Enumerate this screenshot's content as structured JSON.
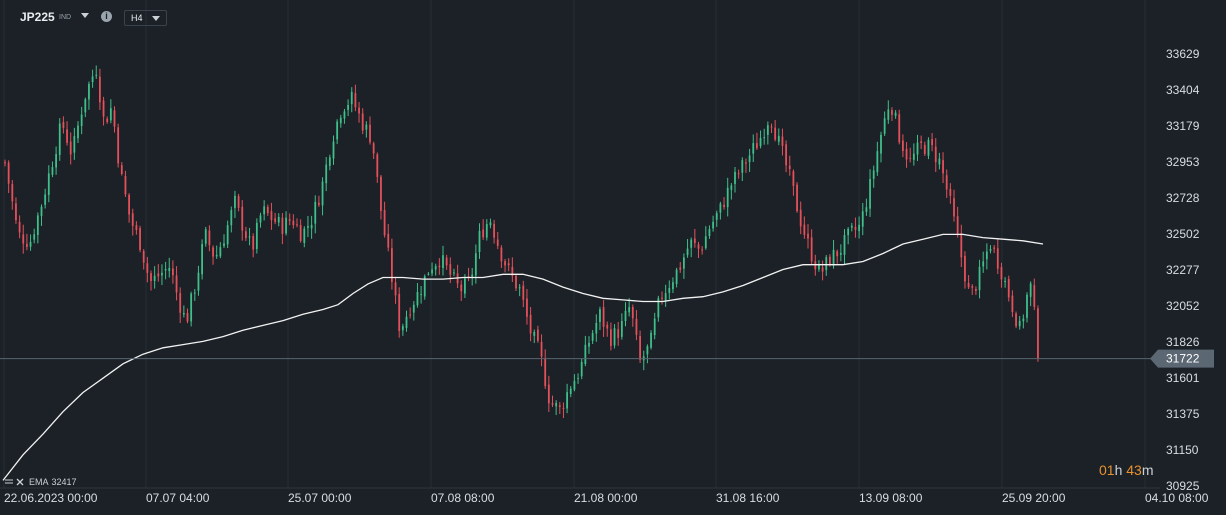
{
  "header": {
    "symbol": "JP225",
    "symbol_type": "IND",
    "timeframe": "H4"
  },
  "indicator": {
    "label": "EMA",
    "value": "32417"
  },
  "timer": {
    "hours": "01",
    "hours_unit": "h",
    "minutes": "43",
    "minutes_unit": "m"
  },
  "colors": {
    "background": "#1b2127",
    "bull": "#3fbf8a",
    "bear": "#e5505a",
    "ema": "#f2f2f2",
    "price_line": "#596570"
  },
  "chart_data": {
    "type": "candlestick",
    "y_ticks": [
      33629,
      33404,
      33179,
      32953,
      32728,
      32502,
      32277,
      32052,
      31826,
      31601,
      31375,
      31150,
      30925
    ],
    "x_ticks": [
      "22.06.2023  00:00",
      "07.07  04:00",
      "25.07  00:00",
      "07.08  08:00",
      "21.08  00:00",
      "31.08  16:00",
      "13.09  08:00",
      "25.09  20:00",
      "04.10  08:00"
    ],
    "current_price": "31722",
    "ylim": [
      30925,
      33629
    ],
    "close_path": [
      [
        0,
        32450
      ],
      [
        5,
        32950
      ],
      [
        18,
        32500
      ],
      [
        30,
        32450
      ],
      [
        42,
        32700
      ],
      [
        52,
        32950
      ],
      [
        62,
        33200
      ],
      [
        72,
        33000
      ],
      [
        84,
        33350
      ],
      [
        96,
        33550
      ],
      [
        104,
        33200
      ],
      [
        112,
        33300
      ],
      [
        120,
        32900
      ],
      [
        130,
        32600
      ],
      [
        140,
        32450
      ],
      [
        150,
        32200
      ],
      [
        160,
        32250
      ],
      [
        170,
        32300
      ],
      [
        178,
        32100
      ],
      [
        186,
        31950
      ],
      [
        196,
        32200
      ],
      [
        205,
        32500
      ],
      [
        215,
        32350
      ],
      [
        225,
        32500
      ],
      [
        235,
        32700
      ],
      [
        243,
        32550
      ],
      [
        252,
        32400
      ],
      [
        262,
        32650
      ],
      [
        272,
        32600
      ],
      [
        282,
        32550
      ],
      [
        292,
        32600
      ],
      [
        302,
        32500
      ],
      [
        312,
        32600
      ],
      [
        322,
        32800
      ],
      [
        332,
        33100
      ],
      [
        342,
        33300
      ],
      [
        352,
        33350
      ],
      [
        362,
        33200
      ],
      [
        372,
        33100
      ],
      [
        382,
        32600
      ],
      [
        390,
        32300
      ],
      [
        400,
        31900
      ],
      [
        410,
        32050
      ],
      [
        420,
        32150
      ],
      [
        430,
        32300
      ],
      [
        440,
        32350
      ],
      [
        450,
        32250
      ],
      [
        460,
        32150
      ],
      [
        470,
        32200
      ],
      [
        480,
        32500
      ],
      [
        490,
        32600
      ],
      [
        500,
        32400
      ],
      [
        510,
        32250
      ],
      [
        520,
        32150
      ],
      [
        530,
        31900
      ],
      [
        540,
        31750
      ],
      [
        550,
        31450
      ],
      [
        560,
        31400
      ],
      [
        570,
        31550
      ],
      [
        580,
        31650
      ],
      [
        590,
        31850
      ],
      [
        600,
        32000
      ],
      [
        610,
        31850
      ],
      [
        620,
        31900
      ],
      [
        630,
        32050
      ],
      [
        640,
        31700
      ],
      [
        650,
        31800
      ],
      [
        660,
        32100
      ],
      [
        670,
        32200
      ],
      [
        680,
        32300
      ],
      [
        690,
        32450
      ],
      [
        700,
        32400
      ],
      [
        710,
        32550
      ],
      [
        720,
        32650
      ],
      [
        730,
        32800
      ],
      [
        740,
        32900
      ],
      [
        750,
        33000
      ],
      [
        760,
        33100
      ],
      [
        770,
        33250
      ],
      [
        780,
        33050
      ],
      [
        790,
        32850
      ],
      [
        800,
        32600
      ],
      [
        810,
        32400
      ],
      [
        820,
        32250
      ],
      [
        830,
        32350
      ],
      [
        840,
        32400
      ],
      [
        850,
        32500
      ],
      [
        860,
        32550
      ],
      [
        870,
        32800
      ],
      [
        880,
        33100
      ],
      [
        890,
        33350
      ],
      [
        900,
        33100
      ],
      [
        910,
        32950
      ],
      [
        920,
        33050
      ],
      [
        930,
        33050
      ],
      [
        940,
        32950
      ],
      [
        950,
        32700
      ],
      [
        960,
        32400
      ],
      [
        970,
        32100
      ],
      [
        980,
        32250
      ],
      [
        990,
        32450
      ],
      [
        1000,
        32300
      ],
      [
        1010,
        32100
      ],
      [
        1020,
        31900
      ],
      [
        1030,
        32200
      ],
      [
        1040,
        31722
      ]
    ],
    "ema_path": [
      [
        0,
        30960
      ],
      [
        20,
        31120
      ],
      [
        40,
        31250
      ],
      [
        60,
        31390
      ],
      [
        80,
        31510
      ],
      [
        100,
        31600
      ],
      [
        120,
        31690
      ],
      [
        140,
        31750
      ],
      [
        160,
        31790
      ],
      [
        180,
        31810
      ],
      [
        200,
        31830
      ],
      [
        220,
        31860
      ],
      [
        240,
        31900
      ],
      [
        260,
        31930
      ],
      [
        280,
        31960
      ],
      [
        300,
        32000
      ],
      [
        320,
        32030
      ],
      [
        335,
        32060
      ],
      [
        350,
        32130
      ],
      [
        365,
        32190
      ],
      [
        380,
        32230
      ],
      [
        400,
        32230
      ],
      [
        420,
        32220
      ],
      [
        440,
        32220
      ],
      [
        460,
        32230
      ],
      [
        480,
        32230
      ],
      [
        500,
        32250
      ],
      [
        520,
        32250
      ],
      [
        540,
        32220
      ],
      [
        560,
        32170
      ],
      [
        580,
        32130
      ],
      [
        600,
        32100
      ],
      [
        620,
        32090
      ],
      [
        640,
        32080
      ],
      [
        660,
        32080
      ],
      [
        680,
        32100
      ],
      [
        700,
        32110
      ],
      [
        720,
        32140
      ],
      [
        740,
        32180
      ],
      [
        760,
        32230
      ],
      [
        780,
        32280
      ],
      [
        800,
        32310
      ],
      [
        820,
        32310
      ],
      [
        840,
        32310
      ],
      [
        860,
        32330
      ],
      [
        880,
        32380
      ],
      [
        900,
        32440
      ],
      [
        920,
        32470
      ],
      [
        940,
        32500
      ],
      [
        960,
        32500
      ],
      [
        980,
        32480
      ],
      [
        1000,
        32470
      ],
      [
        1020,
        32460
      ],
      [
        1040,
        32440
      ]
    ]
  }
}
